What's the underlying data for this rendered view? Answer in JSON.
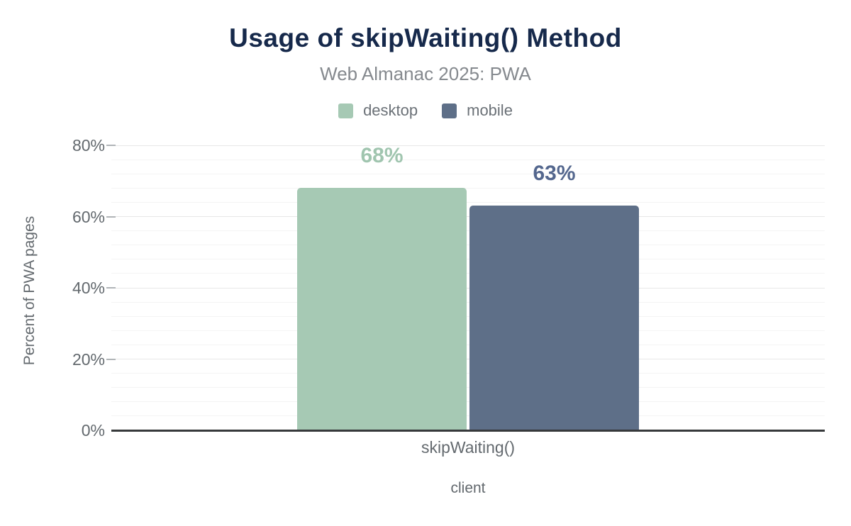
{
  "chart": {
    "title": "Usage of skipWaiting() Method",
    "subtitle": "Web Almanac 2025: PWA"
  },
  "colors": {
    "title": "#16294b",
    "subtitle": "#85898e",
    "axis_text": "#63696e",
    "legend_text": "#6b7177",
    "axis_line": "#37393b",
    "major_grid": "#e7e7e7",
    "minor_grid": "#f4f4f4",
    "tick": "#b0b4b7",
    "desktop": "#a6c9b4",
    "mobile": "#5e6f88"
  },
  "chart_data": {
    "type": "bar",
    "title": "Usage of skipWaiting() Method",
    "subtitle": "Web Almanac 2025: PWA",
    "categories": [
      "skipWaiting()"
    ],
    "series": [
      {
        "name": "desktop",
        "values": [
          68
        ],
        "value_labels": [
          "68%"
        ],
        "color": "#a6c9b4",
        "label_color": "#a0c5af"
      },
      {
        "name": "mobile",
        "values": [
          63
        ],
        "value_labels": [
          "63%"
        ],
        "color": "#5e6f88",
        "label_color": "#54678e"
      }
    ],
    "xlabel": "client",
    "ylabel": "Percent of PWA pages",
    "ylim": [
      0,
      80
    ],
    "yticks": [
      0,
      20,
      40,
      60,
      80
    ],
    "ytick_suffix": "%",
    "minor_grid_step": 4,
    "grid": true,
    "legend_position": "top"
  }
}
